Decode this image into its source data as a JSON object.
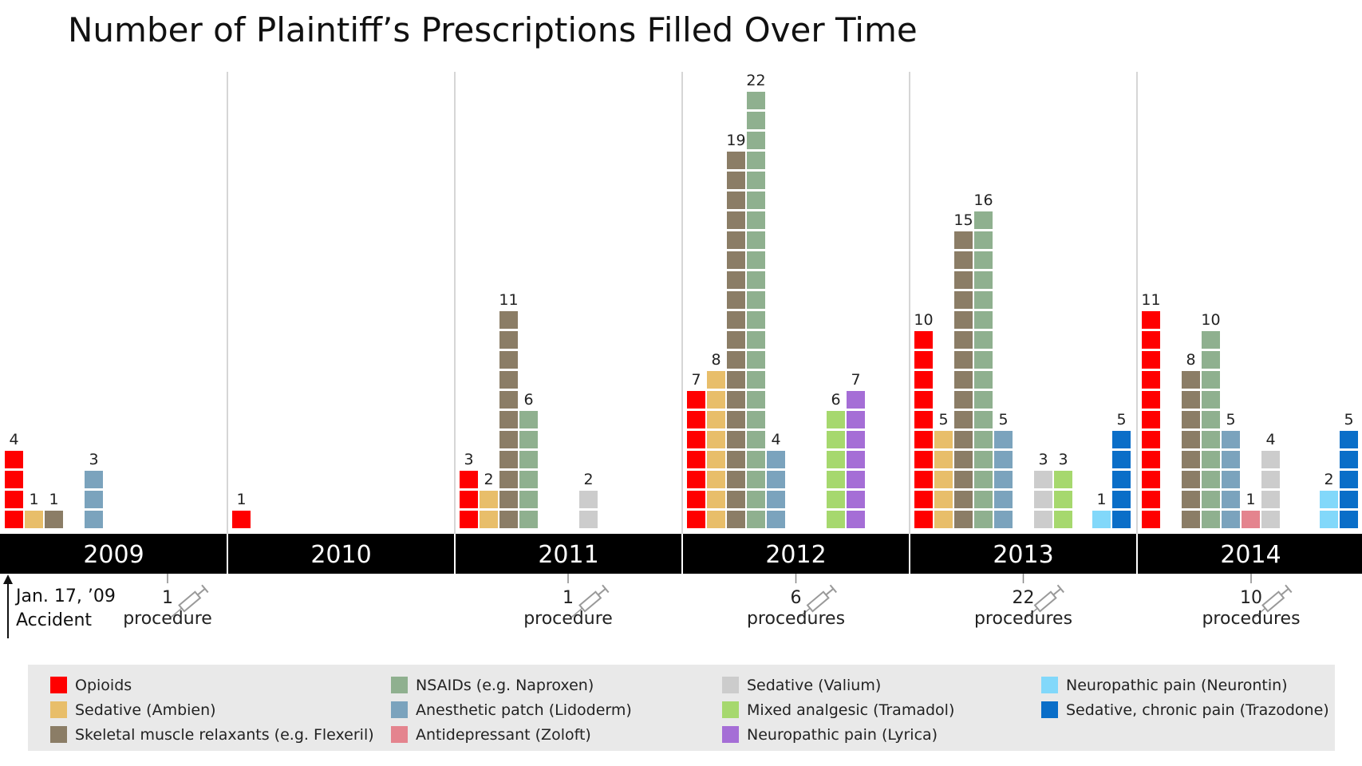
{
  "chart_data": {
    "type": "bar",
    "title": "Number of Plaintiff’s Prescriptions Filled Over Time",
    "categories": [
      "2009",
      "2010",
      "2011",
      "2012",
      "2013",
      "2014"
    ],
    "series": [
      {
        "name": "Opioids",
        "color": "#ff0000",
        "values": [
          4,
          1,
          3,
          7,
          10,
          11
        ]
      },
      {
        "name": "Sedative (Ambien)",
        "color": "#e8be6a",
        "values": [
          1,
          0,
          2,
          8,
          5,
          0
        ]
      },
      {
        "name": "Skeletal muscle relaxants (e.g. Flexeril)",
        "color": "#8b7d66",
        "values": [
          1,
          0,
          11,
          19,
          15,
          8
        ]
      },
      {
        "name": "NSAIDs (e.g. Naproxen)",
        "color": "#8fb08f",
        "values": [
          0,
          0,
          6,
          22,
          16,
          10
        ]
      },
      {
        "name": "Anesthetic patch (Lidoderm)",
        "color": "#7ba3bd",
        "values": [
          3,
          0,
          0,
          4,
          5,
          5
        ]
      },
      {
        "name": "Antidepressant (Zoloft)",
        "color": "#e4848e",
        "values": [
          0,
          0,
          0,
          0,
          0,
          1
        ]
      },
      {
        "name": "Sedative (Valium)",
        "color": "#cccccc",
        "values": [
          0,
          0,
          2,
          0,
          3,
          4
        ]
      },
      {
        "name": "Mixed analgesic (Tramadol)",
        "color": "#a6d86e",
        "values": [
          0,
          0,
          0,
          6,
          3,
          0
        ]
      },
      {
        "name": "Neuropathic pain (Lyrica)",
        "color": "#a56ed6",
        "values": [
          0,
          0,
          0,
          7,
          0,
          0
        ]
      },
      {
        "name": "Neuropathic pain (Neurontin)",
        "color": "#82d8fa",
        "values": [
          0,
          0,
          0,
          0,
          1,
          2
        ]
      },
      {
        "name": "Sedative, chronic pain (Trazodone)",
        "color": "#0a6ec8",
        "values": [
          0,
          0,
          0,
          0,
          5,
          5
        ]
      }
    ],
    "procedures": [
      {
        "year": "2009",
        "count": "1",
        "label": "procedure"
      },
      {
        "year": "2011",
        "count": "1",
        "label": "procedure"
      },
      {
        "year": "2012",
        "count": "6",
        "label": "procedures"
      },
      {
        "year": "2013",
        "count": "22",
        "label": "procedures"
      },
      {
        "year": "2014",
        "count": "10",
        "label": "procedures"
      }
    ],
    "accident": {
      "date": "Jan. 17, ’09",
      "label": "Accident"
    },
    "legend": "bottom"
  }
}
